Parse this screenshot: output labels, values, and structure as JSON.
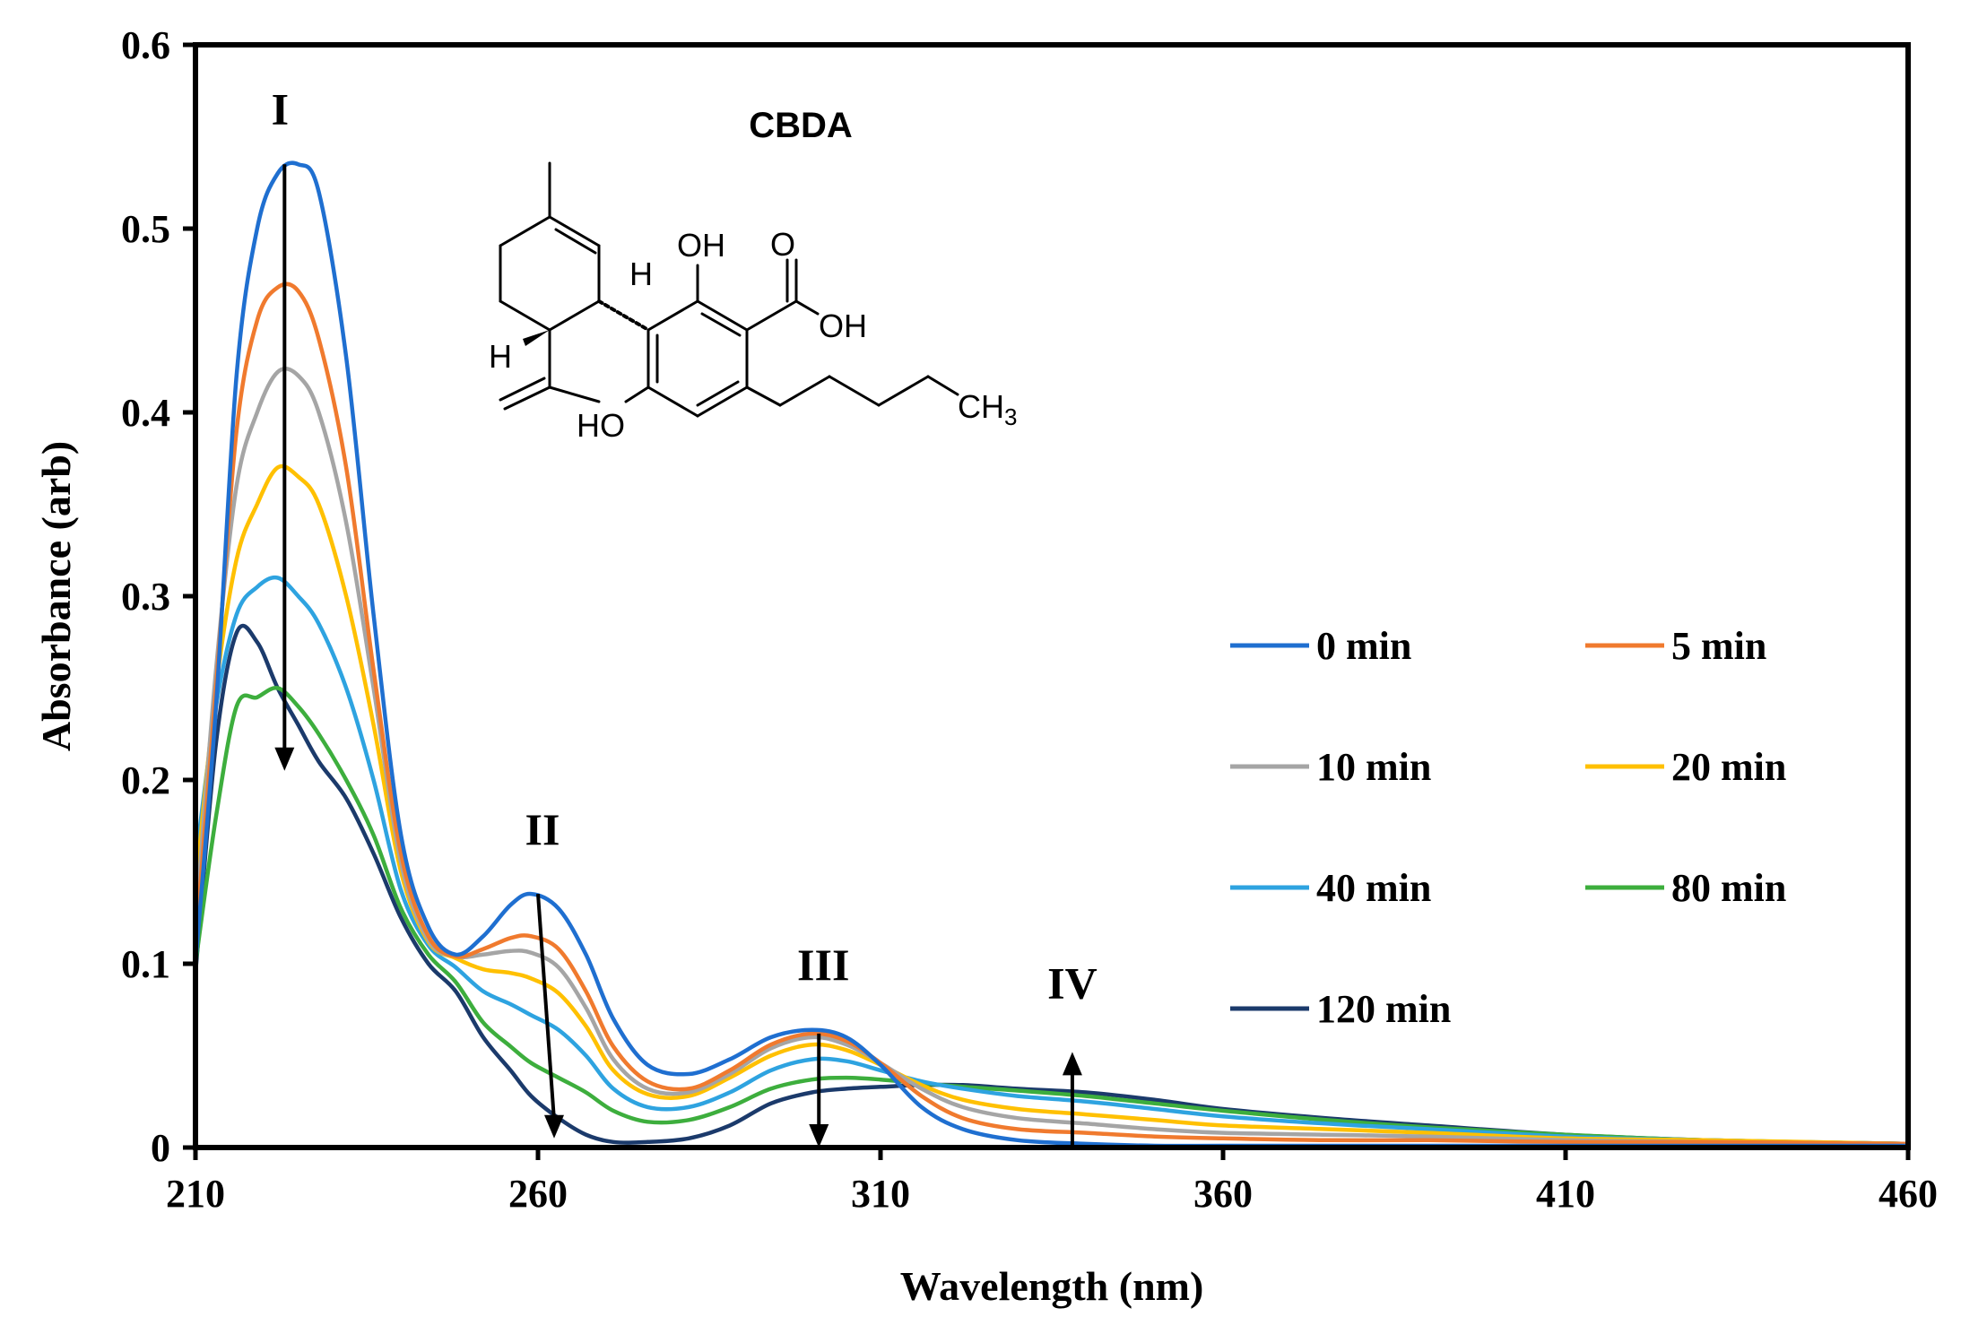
{
  "chart_data": {
    "type": "line",
    "title": "",
    "xlabel": "Wavelength (nm)",
    "ylabel": "Absorbance (arb)",
    "xlim": [
      210,
      460
    ],
    "ylim": [
      0,
      0.6
    ],
    "xticks": [
      210,
      260,
      310,
      360,
      410,
      460
    ],
    "yticks": [
      0,
      0.1,
      0.2,
      0.3,
      0.4,
      0.5,
      0.6
    ],
    "xtick_labels": [
      "210",
      "260",
      "310",
      "360",
      "410",
      "460"
    ],
    "ytick_labels": [
      "0",
      "0.1",
      "0.2",
      "0.3",
      "0.4",
      "0.5",
      "0.6"
    ],
    "grid": false,
    "legend_position": "right",
    "x": [
      210,
      213,
      216,
      219,
      222,
      225,
      228,
      232,
      236,
      240,
      244,
      248,
      252,
      256,
      259,
      263,
      267,
      271,
      276,
      282,
      288,
      294,
      300,
      305,
      310,
      316,
      322,
      330,
      340,
      350,
      360,
      375,
      390,
      410,
      430,
      460
    ],
    "series": [
      {
        "name": "0 min",
        "color": "#1F6FD0",
        "values": [
          0.1,
          0.24,
          0.42,
          0.5,
          0.53,
          0.535,
          0.52,
          0.43,
          0.29,
          0.17,
          0.12,
          0.105,
          0.115,
          0.132,
          0.138,
          0.13,
          0.105,
          0.07,
          0.045,
          0.04,
          0.048,
          0.06,
          0.064,
          0.06,
          0.045,
          0.022,
          0.01,
          0.004,
          0.002,
          0.001,
          0.001,
          0.001,
          0.001,
          0.001,
          0.001,
          0.001
        ]
      },
      {
        "name": "5 min",
        "color": "#F07A2E",
        "values": [
          0.11,
          0.25,
          0.39,
          0.45,
          0.468,
          0.466,
          0.44,
          0.37,
          0.26,
          0.16,
          0.115,
          0.104,
          0.108,
          0.114,
          0.115,
          0.108,
          0.085,
          0.055,
          0.036,
          0.032,
          0.042,
          0.056,
          0.062,
          0.058,
          0.046,
          0.028,
          0.016,
          0.01,
          0.008,
          0.006,
          0.005,
          0.004,
          0.004,
          0.003,
          0.003,
          0.002
        ]
      },
      {
        "name": "10 min",
        "color": "#A5A5A5",
        "values": [
          0.12,
          0.26,
          0.36,
          0.4,
          0.422,
          0.42,
          0.4,
          0.34,
          0.25,
          0.155,
          0.113,
          0.104,
          0.105,
          0.107,
          0.106,
          0.098,
          0.076,
          0.048,
          0.032,
          0.03,
          0.04,
          0.054,
          0.06,
          0.056,
          0.046,
          0.032,
          0.022,
          0.016,
          0.013,
          0.01,
          0.008,
          0.007,
          0.006,
          0.004,
          0.003,
          0.002
        ]
      },
      {
        "name": "20 min",
        "color": "#FFC000",
        "values": [
          0.14,
          0.25,
          0.32,
          0.35,
          0.37,
          0.365,
          0.35,
          0.3,
          0.23,
          0.15,
          0.112,
          0.103,
          0.097,
          0.095,
          0.092,
          0.084,
          0.066,
          0.042,
          0.029,
          0.028,
          0.038,
          0.05,
          0.056,
          0.053,
          0.045,
          0.034,
          0.026,
          0.021,
          0.018,
          0.015,
          0.012,
          0.01,
          0.008,
          0.005,
          0.004,
          0.002
        ]
      },
      {
        "name": "40 min",
        "color": "#2EA3E0",
        "values": [
          0.155,
          0.24,
          0.29,
          0.305,
          0.31,
          0.3,
          0.285,
          0.25,
          0.2,
          0.14,
          0.11,
          0.098,
          0.085,
          0.078,
          0.072,
          0.064,
          0.05,
          0.032,
          0.022,
          0.022,
          0.03,
          0.042,
          0.048,
          0.047,
          0.042,
          0.036,
          0.032,
          0.028,
          0.025,
          0.021,
          0.017,
          0.013,
          0.01,
          0.006,
          0.004,
          0.002
        ]
      },
      {
        "name": "80 min",
        "color": "#3DAE3D",
        "values": [
          0.1,
          0.18,
          0.24,
          0.245,
          0.25,
          0.24,
          0.225,
          0.2,
          0.17,
          0.13,
          0.105,
          0.09,
          0.068,
          0.055,
          0.046,
          0.038,
          0.03,
          0.02,
          0.014,
          0.015,
          0.022,
          0.032,
          0.037,
          0.038,
          0.037,
          0.035,
          0.033,
          0.031,
          0.028,
          0.024,
          0.02,
          0.015,
          0.011,
          0.007,
          0.004,
          0.002
        ]
      },
      {
        "name": "120 min",
        "color": "#1B3A6B",
        "values": [
          0.095,
          0.22,
          0.28,
          0.275,
          0.25,
          0.23,
          0.21,
          0.19,
          0.16,
          0.125,
          0.1,
          0.085,
          0.06,
          0.042,
          0.028,
          0.016,
          0.007,
          0.003,
          0.003,
          0.005,
          0.012,
          0.024,
          0.03,
          0.032,
          0.033,
          0.034,
          0.034,
          0.032,
          0.03,
          0.026,
          0.021,
          0.016,
          0.012,
          0.007,
          0.004,
          0.002
        ]
      }
    ],
    "annotations": [
      {
        "label": "I",
        "wavelength": 223,
        "arrow_from": 0.535,
        "arrow_to": 0.205,
        "direction": "down"
      },
      {
        "label": "II",
        "wavelength": 260,
        "arrow_from": 0.138,
        "arrow_to": 0.005,
        "direction": "down"
      },
      {
        "label": "III",
        "wavelength": 301,
        "arrow_from": 0.062,
        "arrow_to": 0.0,
        "direction": "down"
      },
      {
        "label": "IV",
        "wavelength": 338,
        "arrow_from": 0.0,
        "arrow_to": 0.052,
        "direction": "up"
      }
    ]
  },
  "molecule": {
    "name": "CBDA",
    "oh_top": "OH",
    "oh_acid": "OH",
    "carbonyl_o": "O",
    "ho_bottom": "HO",
    "h_upper": "H",
    "h_lower": "H",
    "ch3_main": "CH",
    "ch3_sub": "3"
  }
}
